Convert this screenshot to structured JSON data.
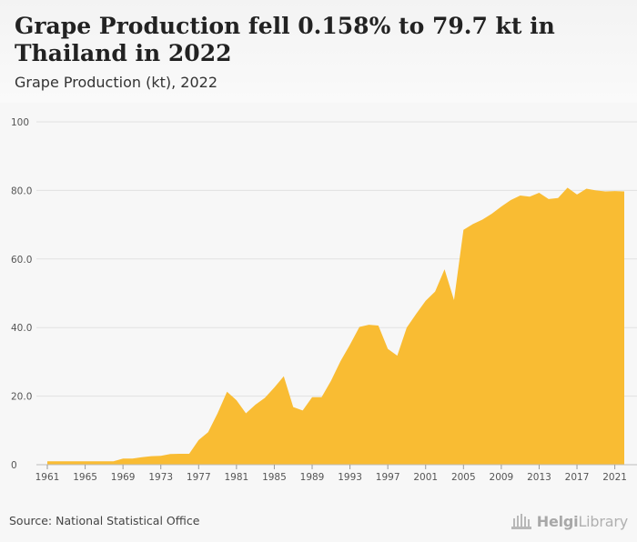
{
  "header": {
    "title": "Grape Production fell 0.158% to 79.7 kt in Thailand in 2022",
    "subtitle": "Grape Production (kt), 2022"
  },
  "footer": {
    "source": "Source: National Statistical Office",
    "logo_text_bold": "Helgi",
    "logo_text_rest": "Library"
  },
  "colors": {
    "area_fill": "#f9bc33",
    "grid": "#e2e2e2",
    "tick_text": "#555555"
  },
  "chart_data": {
    "type": "area",
    "title": "Grape Production fell 0.158% to 79.7 kt in Thailand in 2022",
    "subtitle": "Grape Production (kt), 2022",
    "xlabel": "",
    "ylabel": "",
    "xlim": [
      1961,
      2022
    ],
    "ylim": [
      0,
      100
    ],
    "grid": true,
    "legend": "none",
    "x_tick_labels": [
      "1961",
      "1965",
      "1969",
      "1973",
      "1977",
      "1981",
      "1985",
      "1989",
      "1993",
      "1997",
      "2001",
      "2005",
      "2009",
      "2013",
      "2017",
      "2021"
    ],
    "y_tick_labels": [
      "0",
      "20.0",
      "40.0",
      "60.0",
      "80.0",
      "100"
    ],
    "y_tick_values": [
      0,
      20,
      40,
      60,
      80,
      100
    ],
    "series": [
      {
        "x": [
          1961,
          1962,
          1963,
          1964,
          1965,
          1966,
          1967,
          1968,
          1969,
          1970,
          1971,
          1972,
          1973,
          1974,
          1975,
          1976,
          1977,
          1978,
          1979,
          1980,
          1981,
          1982,
          1983,
          1984,
          1985,
          1986,
          1987,
          1988,
          1989,
          1990,
          1991,
          1992,
          1993,
          1994,
          1995,
          1996,
          1997,
          1998,
          1999,
          2000,
          2001,
          2002,
          2003,
          2004,
          2005,
          2006,
          2007,
          2008,
          2009,
          2010,
          2011,
          2012,
          2013,
          2014,
          2015,
          2016,
          2017,
          2018,
          2019,
          2020,
          2021,
          2022
        ],
        "values": [
          1.0,
          1.0,
          1.0,
          1.0,
          1.0,
          1.0,
          1.0,
          1.0,
          1.8,
          1.8,
          2.2,
          2.5,
          2.6,
          3.1,
          3.2,
          3.2,
          7.2,
          9.5,
          15.0,
          21.3,
          18.8,
          15.0,
          17.5,
          19.5,
          22.5,
          25.8,
          16.8,
          15.8,
          19.7,
          19.7,
          24.5,
          30.2,
          35.0,
          40.2,
          40.8,
          40.6,
          33.8,
          31.8,
          40.0,
          44.0,
          47.8,
          50.5,
          57.0,
          48.0,
          68.5,
          70.2,
          71.5,
          73.2,
          75.3,
          77.2,
          78.5,
          78.2,
          79.3,
          77.5,
          77.8,
          80.8,
          78.8,
          80.5,
          80.0,
          79.7,
          79.8,
          79.7
        ]
      }
    ]
  }
}
